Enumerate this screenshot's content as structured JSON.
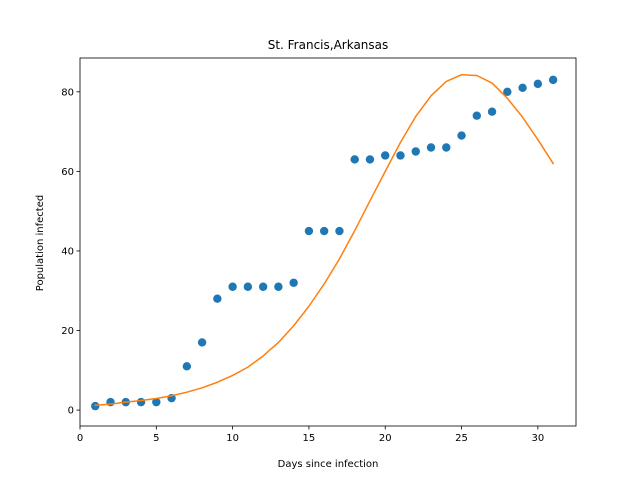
{
  "chart_data": {
    "type": "scatter",
    "title": "St. Francis,Arkansas",
    "xlabel": "Days since infection",
    "ylabel": "Population infected",
    "xlim": [
      0,
      32.5
    ],
    "ylim": [
      -4,
      88.5
    ],
    "xticks": [
      0,
      5,
      10,
      15,
      20,
      25,
      30
    ],
    "yticks": [
      0,
      20,
      40,
      60,
      80
    ],
    "grid": false,
    "legend": "none",
    "series": [
      {
        "kind": "scatter",
        "color": "#1f77b4",
        "x": [
          1,
          2,
          3,
          4,
          5,
          6,
          7,
          8,
          9,
          10,
          11,
          12,
          13,
          14,
          15,
          16,
          17,
          18,
          19,
          20,
          21,
          22,
          23,
          24,
          25,
          26,
          27,
          28,
          29,
          30,
          31
        ],
        "y": [
          1,
          2,
          2,
          2,
          2,
          3,
          11,
          17,
          28,
          31,
          31,
          31,
          31,
          32,
          45,
          45,
          45,
          63,
          63,
          64,
          64,
          65,
          66,
          66,
          69,
          74,
          75,
          80,
          81,
          82,
          83
        ]
      },
      {
        "kind": "line",
        "color": "#ff7f0e",
        "x": [
          1,
          2,
          3,
          4,
          5,
          6,
          7,
          8,
          9,
          10,
          11,
          12,
          13,
          14,
          15,
          16,
          17,
          18,
          19,
          20,
          21,
          22,
          23,
          24,
          25,
          26,
          27,
          28,
          29,
          30,
          31
        ],
        "y": [
          1.2,
          1.5,
          2.0,
          2.4,
          2.9,
          3.6,
          4.5,
          5.6,
          7.0,
          8.7,
          10.8,
          13.6,
          17.0,
          21.2,
          26.1,
          31.7,
          38.0,
          45.1,
          52.6,
          60.0,
          67.3,
          73.8,
          79.0,
          82.6,
          84.3,
          84.1,
          82.2,
          78.4,
          73.6,
          68.0,
          62.0
        ]
      }
    ]
  }
}
